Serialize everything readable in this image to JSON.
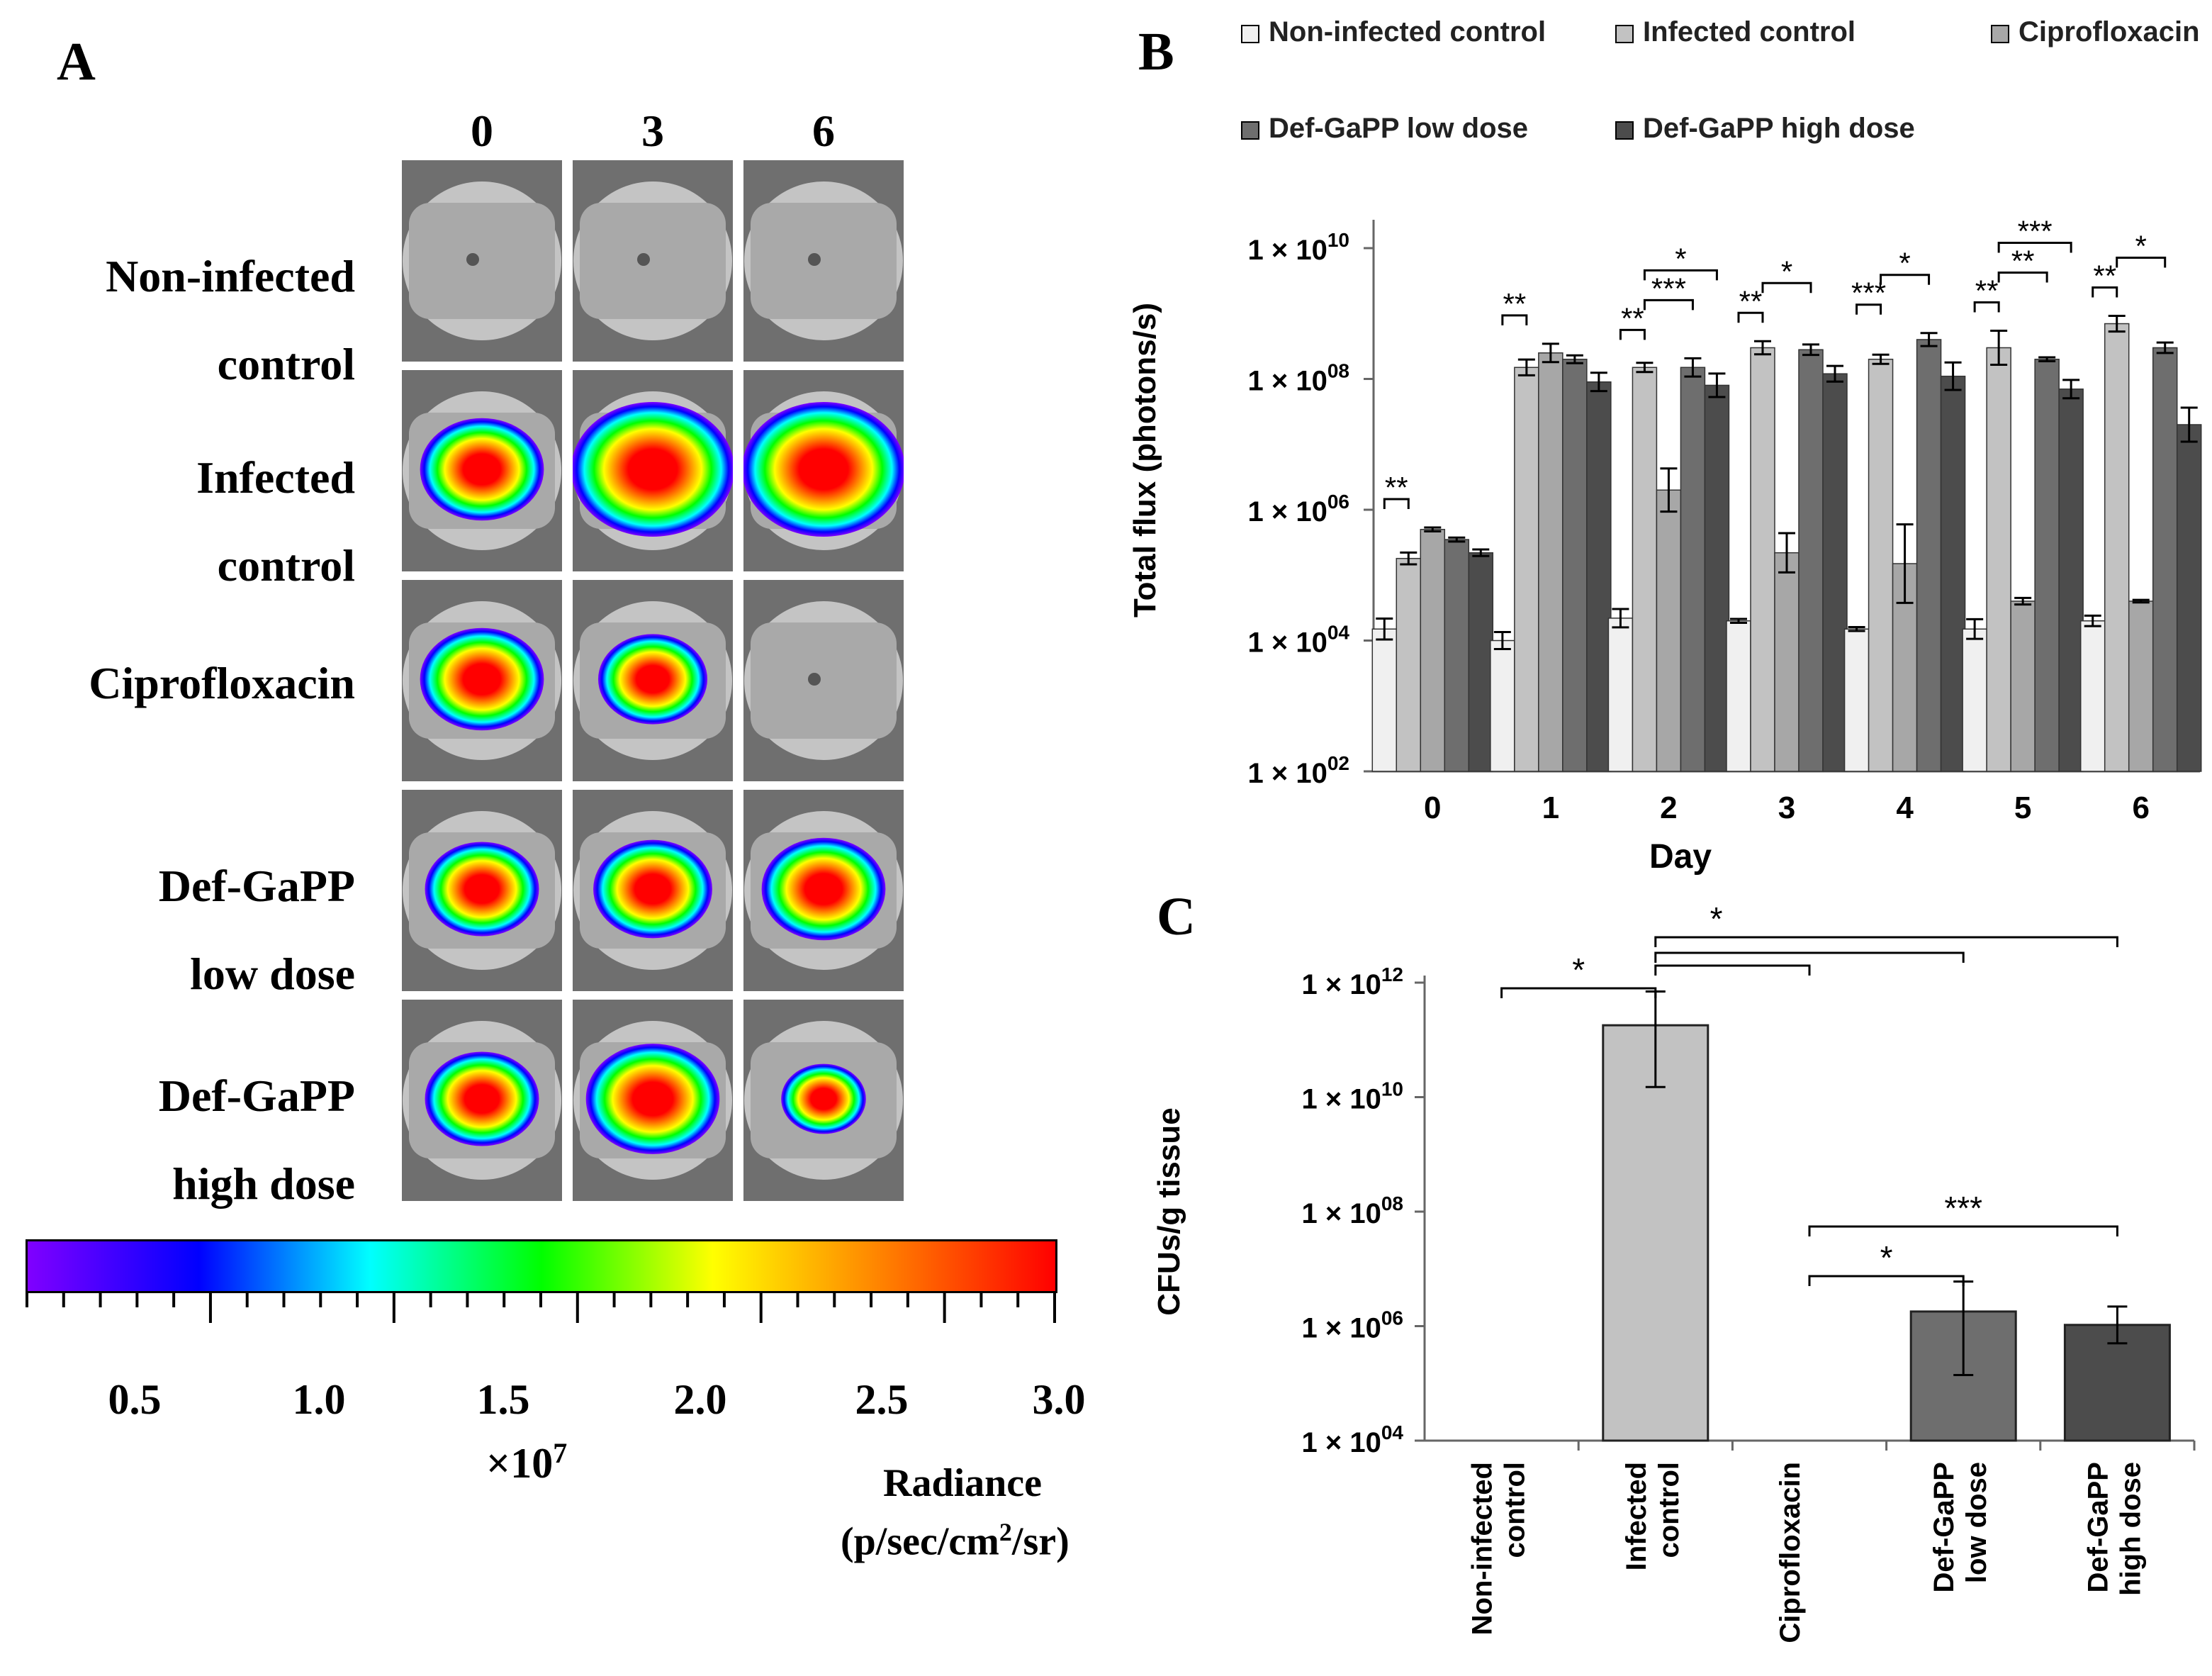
{
  "panels": {
    "a": "A",
    "b": "B",
    "c": "C"
  },
  "panel_a": {
    "days": [
      "0",
      "3",
      "6"
    ],
    "rows": [
      {
        "label": "Non-infected\ncontrol",
        "spots": [
          0,
          0,
          0
        ]
      },
      {
        "label": "Infected\ncontrol",
        "spots": [
          0.6,
          1.0,
          1.0
        ]
      },
      {
        "label": "Ciprofloxacin",
        "spots": [
          0.6,
          0.45,
          0
        ]
      },
      {
        "label": "Def-GaPP\nlow dose",
        "spots": [
          0.5,
          0.55,
          0.6
        ]
      },
      {
        "label": "Def-GaPP\nhigh dose",
        "spots": [
          0.5,
          0.7,
          0.2
        ]
      }
    ],
    "colorbar": {
      "ticks": [
        "0.5",
        "1.0",
        "1.5",
        "2.0",
        "2.5",
        "3.0"
      ],
      "multiplier": "×10",
      "multiplier_exp": "7",
      "title": "Radiance",
      "unit_prefix": "(p/sec/cm",
      "unit_sup": "2",
      "unit_suffix": "/sr)",
      "colors": [
        "#8000ff",
        "#0000ff",
        "#00ffff",
        "#00ff00",
        "#ffff00",
        "#ff8000",
        "#ff0000"
      ]
    }
  },
  "chart_data": [
    {
      "type": "bar",
      "id": "B",
      "title": "",
      "xlabel": "Day",
      "ylabel": "Total flux (photons/s)",
      "yscale": "log",
      "ylim": [
        100,
        10000000000
      ],
      "ytick_mantissa": "1 × 10",
      "yticks": [
        2,
        4,
        6,
        8,
        10
      ],
      "categories": [
        "0",
        "1",
        "2",
        "3",
        "4",
        "5",
        "6"
      ],
      "series": [
        {
          "name": "Non-infected control",
          "color": "#f0f0f0",
          "values": [
            15000,
            10000,
            22000,
            20000,
            15000,
            15000,
            20000
          ],
          "err": [
            0.16,
            0.13,
            0.14,
            0.03,
            0.03,
            0.15,
            0.08
          ]
        },
        {
          "name": "Infected control",
          "color": "#c2c2c2",
          "values": [
            180000,
            150000000,
            150000000,
            300000000,
            200000000,
            300000000,
            700000000
          ],
          "err": [
            0.09,
            0.12,
            0.07,
            0.1,
            0.07,
            0.26,
            0.12
          ]
        },
        {
          "name": "Ciprofloxacin",
          "color": "#a7a7a7",
          "values": [
            500000,
            250000000,
            2000000,
            220000,
            150000,
            40000,
            40000
          ],
          "err": [
            0.03,
            0.14,
            0.33,
            0.3,
            0.6,
            0.05,
            0.02
          ]
        },
        {
          "name": "Def-GaPP low dose",
          "color": "#6e6e6e",
          "values": [
            350000,
            200000000,
            150000000,
            280000000,
            400000000,
            200000000,
            300000000
          ],
          "err": [
            0.03,
            0.06,
            0.14,
            0.08,
            0.1,
            0.03,
            0.08
          ]
        },
        {
          "name": "Def-GaPP high dose",
          "color": "#4c4c4c",
          "values": [
            220000,
            90000000,
            80000000,
            120000000,
            110000000,
            70000000,
            20000000
          ],
          "err": [
            0.05,
            0.14,
            0.18,
            0.12,
            0.21,
            0.14,
            0.26
          ]
        }
      ],
      "significance": [
        {
          "day": 0,
          "label": "**"
        },
        {
          "day": 1,
          "label": "**"
        },
        {
          "day": 2,
          "label": "**"
        },
        {
          "day": 2,
          "label": "***"
        },
        {
          "day": 2,
          "label": "*"
        },
        {
          "day": 3,
          "label": "**"
        },
        {
          "day": 3,
          "label": "*"
        },
        {
          "day": 4,
          "label": "***"
        },
        {
          "day": 4,
          "label": "*"
        },
        {
          "day": 5,
          "label": "**"
        },
        {
          "day": 5,
          "label": "**"
        },
        {
          "day": 5,
          "label": "***"
        },
        {
          "day": 6,
          "label": "**"
        },
        {
          "day": 6,
          "label": "*"
        }
      ]
    },
    {
      "type": "bar",
      "id": "C",
      "title": "",
      "xlabel": "",
      "ylabel": "CFUs/g tissue",
      "yscale": "log",
      "ylim": [
        10000,
        1000000000000
      ],
      "ytick_mantissa": "1 × 10",
      "yticks": [
        4,
        6,
        8,
        10,
        12
      ],
      "categories": [
        "Non-infected control",
        "Infected control",
        "Ciprofloxacin",
        "Def-GaPP low dose",
        "Def-GaPP high dose"
      ],
      "category_lines": [
        [
          "Non-infected",
          "control"
        ],
        [
          "Infected",
          "control"
        ],
        [
          "Ciprofloxacin",
          ""
        ],
        [
          "Def-GaPP",
          "low dose"
        ],
        [
          "Def-GaPP",
          "high dose"
        ]
      ],
      "colors": [
        "#ffffff",
        "#c2c2c2",
        "#ffffff",
        "#6e6e6e",
        "#4c4c4c"
      ],
      "values": [
        null,
        180000000000,
        null,
        1800000,
        1050000
      ],
      "err_low": [
        null,
        15000000000,
        null,
        140000,
        500000
      ],
      "err_high": [
        null,
        700000000000,
        null,
        6000000,
        2200000
      ],
      "significance": [
        {
          "from": 0,
          "to": 1,
          "label": "*"
        },
        {
          "from": 1,
          "to": 4,
          "label": "*"
        },
        {
          "from": 2,
          "to": 3,
          "label": "*"
        },
        {
          "from": 2,
          "to": 4,
          "label": "***"
        }
      ]
    }
  ]
}
